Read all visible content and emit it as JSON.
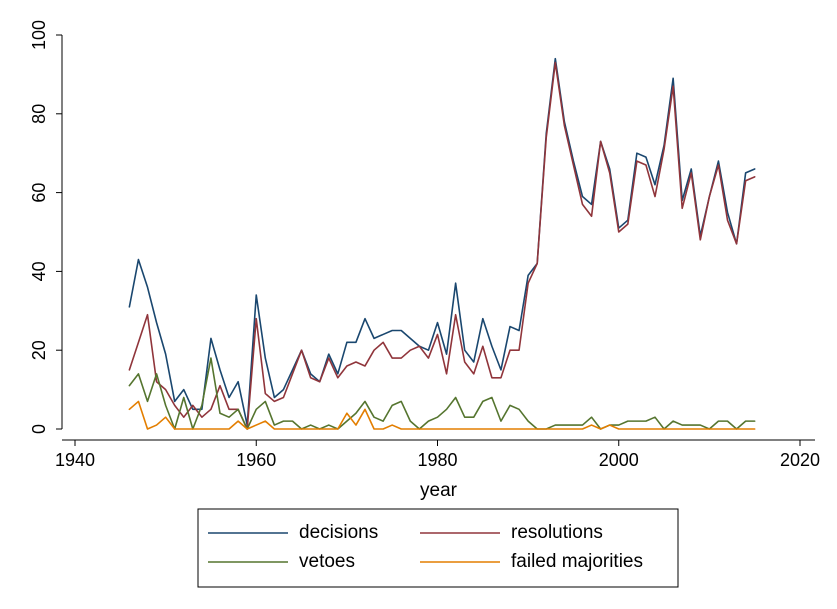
{
  "chart_data": {
    "type": "line",
    "title": "",
    "xlabel": "year",
    "ylabel": "",
    "xlim": [
      1940,
      2020
    ],
    "ylim": [
      0,
      100
    ],
    "xticks": [
      "1940",
      "1960",
      "1980",
      "2000",
      "2020"
    ],
    "yticks": [
      "0",
      "20",
      "40",
      "60",
      "80",
      "100"
    ],
    "grid": false,
    "legend_position": "bottom",
    "x": [
      1946,
      1947,
      1948,
      1949,
      1950,
      1951,
      1952,
      1953,
      1954,
      1955,
      1956,
      1957,
      1958,
      1959,
      1960,
      1961,
      1962,
      1963,
      1964,
      1965,
      1966,
      1967,
      1968,
      1969,
      1970,
      1971,
      1972,
      1973,
      1974,
      1975,
      1976,
      1977,
      1978,
      1979,
      1980,
      1981,
      1982,
      1983,
      1984,
      1985,
      1986,
      1987,
      1988,
      1989,
      1990,
      1991,
      1992,
      1993,
      1994,
      1995,
      1996,
      1997,
      1998,
      1999,
      2000,
      2001,
      2002,
      2003,
      2004,
      2005,
      2006,
      2007,
      2008,
      2009,
      2010,
      2011,
      2012,
      2013,
      2014,
      2015
    ],
    "series": [
      {
        "name": "decisions",
        "color": "#1a476f",
        "values": [
          31,
          43,
          36,
          27,
          19,
          7,
          10,
          5,
          5,
          23,
          15,
          8,
          12,
          1,
          34,
          18,
          8,
          10,
          15,
          20,
          14,
          12,
          19,
          14,
          22,
          22,
          28,
          23,
          24,
          25,
          25,
          23,
          21,
          20,
          27,
          19,
          37,
          20,
          17,
          28,
          21,
          15,
          26,
          25,
          39,
          42,
          75,
          94,
          78,
          68,
          59,
          57,
          73,
          66,
          51,
          53,
          70,
          69,
          62,
          72,
          89,
          58,
          66,
          49,
          59,
          68,
          55,
          47,
          65,
          66
        ]
      },
      {
        "name": "resolutions",
        "color": "#90353b",
        "values": [
          15,
          22,
          29,
          12,
          10,
          6,
          3,
          6,
          3,
          5,
          11,
          5,
          5,
          0,
          28,
          9,
          7,
          8,
          14,
          20,
          13,
          12,
          18,
          13,
          16,
          17,
          16,
          20,
          22,
          18,
          18,
          20,
          21,
          18,
          24,
          14,
          29,
          17,
          14,
          21,
          13,
          13,
          20,
          20,
          37,
          42,
          74,
          93,
          77,
          67,
          57,
          54,
          73,
          65,
          50,
          52,
          68,
          67,
          59,
          71,
          87,
          56,
          65,
          48,
          59,
          67,
          53,
          47,
          63,
          64
        ]
      },
      {
        "name": "vetoes",
        "color": "#55752f",
        "values": [
          11,
          14,
          7,
          14,
          6,
          0,
          8,
          0,
          6,
          18,
          4,
          3,
          5,
          0,
          5,
          7,
          1,
          2,
          2,
          0,
          1,
          0,
          1,
          0,
          2,
          4,
          7,
          3,
          2,
          6,
          7,
          2,
          0,
          2,
          3,
          5,
          8,
          3,
          3,
          7,
          8,
          2,
          6,
          5,
          2,
          0,
          0,
          1,
          1,
          1,
          1,
          3,
          0,
          1,
          1,
          2,
          2,
          2,
          3,
          0,
          2,
          1,
          1,
          1,
          0,
          2,
          2,
          0,
          2,
          2
        ]
      },
      {
        "name": "failed majorities",
        "color": "#e37e00",
        "values": [
          5,
          7,
          0,
          1,
          3,
          0,
          0,
          0,
          0,
          0,
          0,
          0,
          2,
          0,
          1,
          2,
          0,
          0,
          0,
          0,
          0,
          0,
          0,
          0,
          4,
          1,
          5,
          0,
          0,
          1,
          0,
          0,
          0,
          0,
          0,
          0,
          0,
          0,
          0,
          0,
          0,
          0,
          0,
          0,
          0,
          0,
          0,
          0,
          0,
          0,
          0,
          1,
          0,
          1,
          0,
          0,
          0,
          0,
          0,
          0,
          0,
          0,
          0,
          0,
          0,
          0,
          0,
          0,
          0,
          0
        ]
      }
    ]
  }
}
